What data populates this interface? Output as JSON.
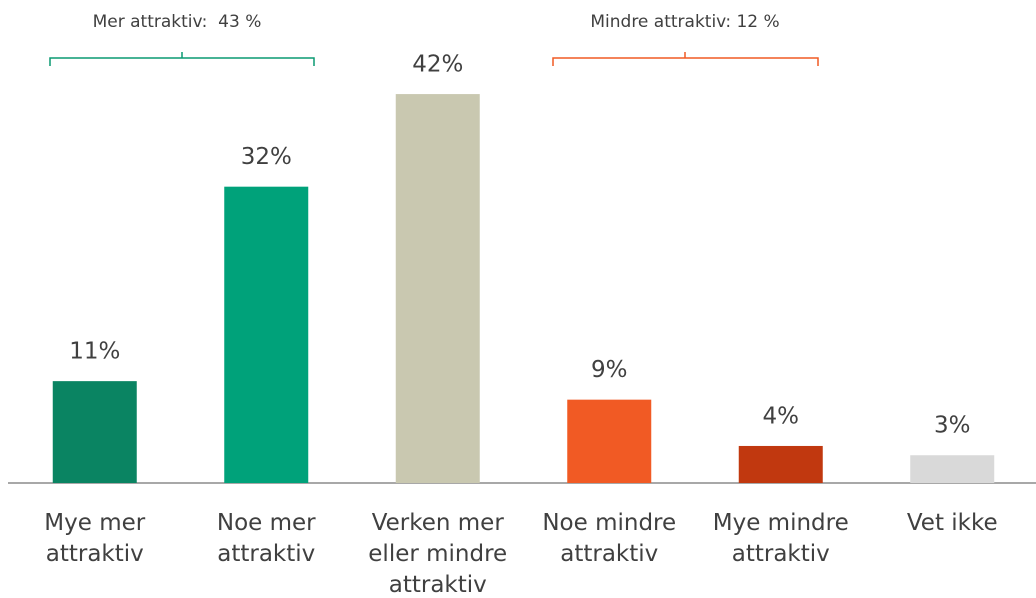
{
  "chart_data": {
    "type": "bar",
    "annotations": [
      "Mer attraktiv:  43 %",
      "Mindre attraktiv: 12 %"
    ],
    "categories": [
      "Mye mer attraktiv",
      "Noe mer attraktiv",
      "Verken mer eller mindre attraktiv",
      "Noe mindre attraktiv",
      "Mye mindre attraktiv",
      "Vet ikke"
    ],
    "values": [
      11,
      32,
      42,
      9,
      4,
      3
    ],
    "value_labels": [
      "11%",
      "32%",
      "42%",
      "9%",
      "4%",
      "3%"
    ],
    "colors": [
      "#0a8462",
      "#00a27a",
      "#c9c8b0",
      "#f15a24",
      "#c1380f",
      "#d9d9d9"
    ]
  }
}
